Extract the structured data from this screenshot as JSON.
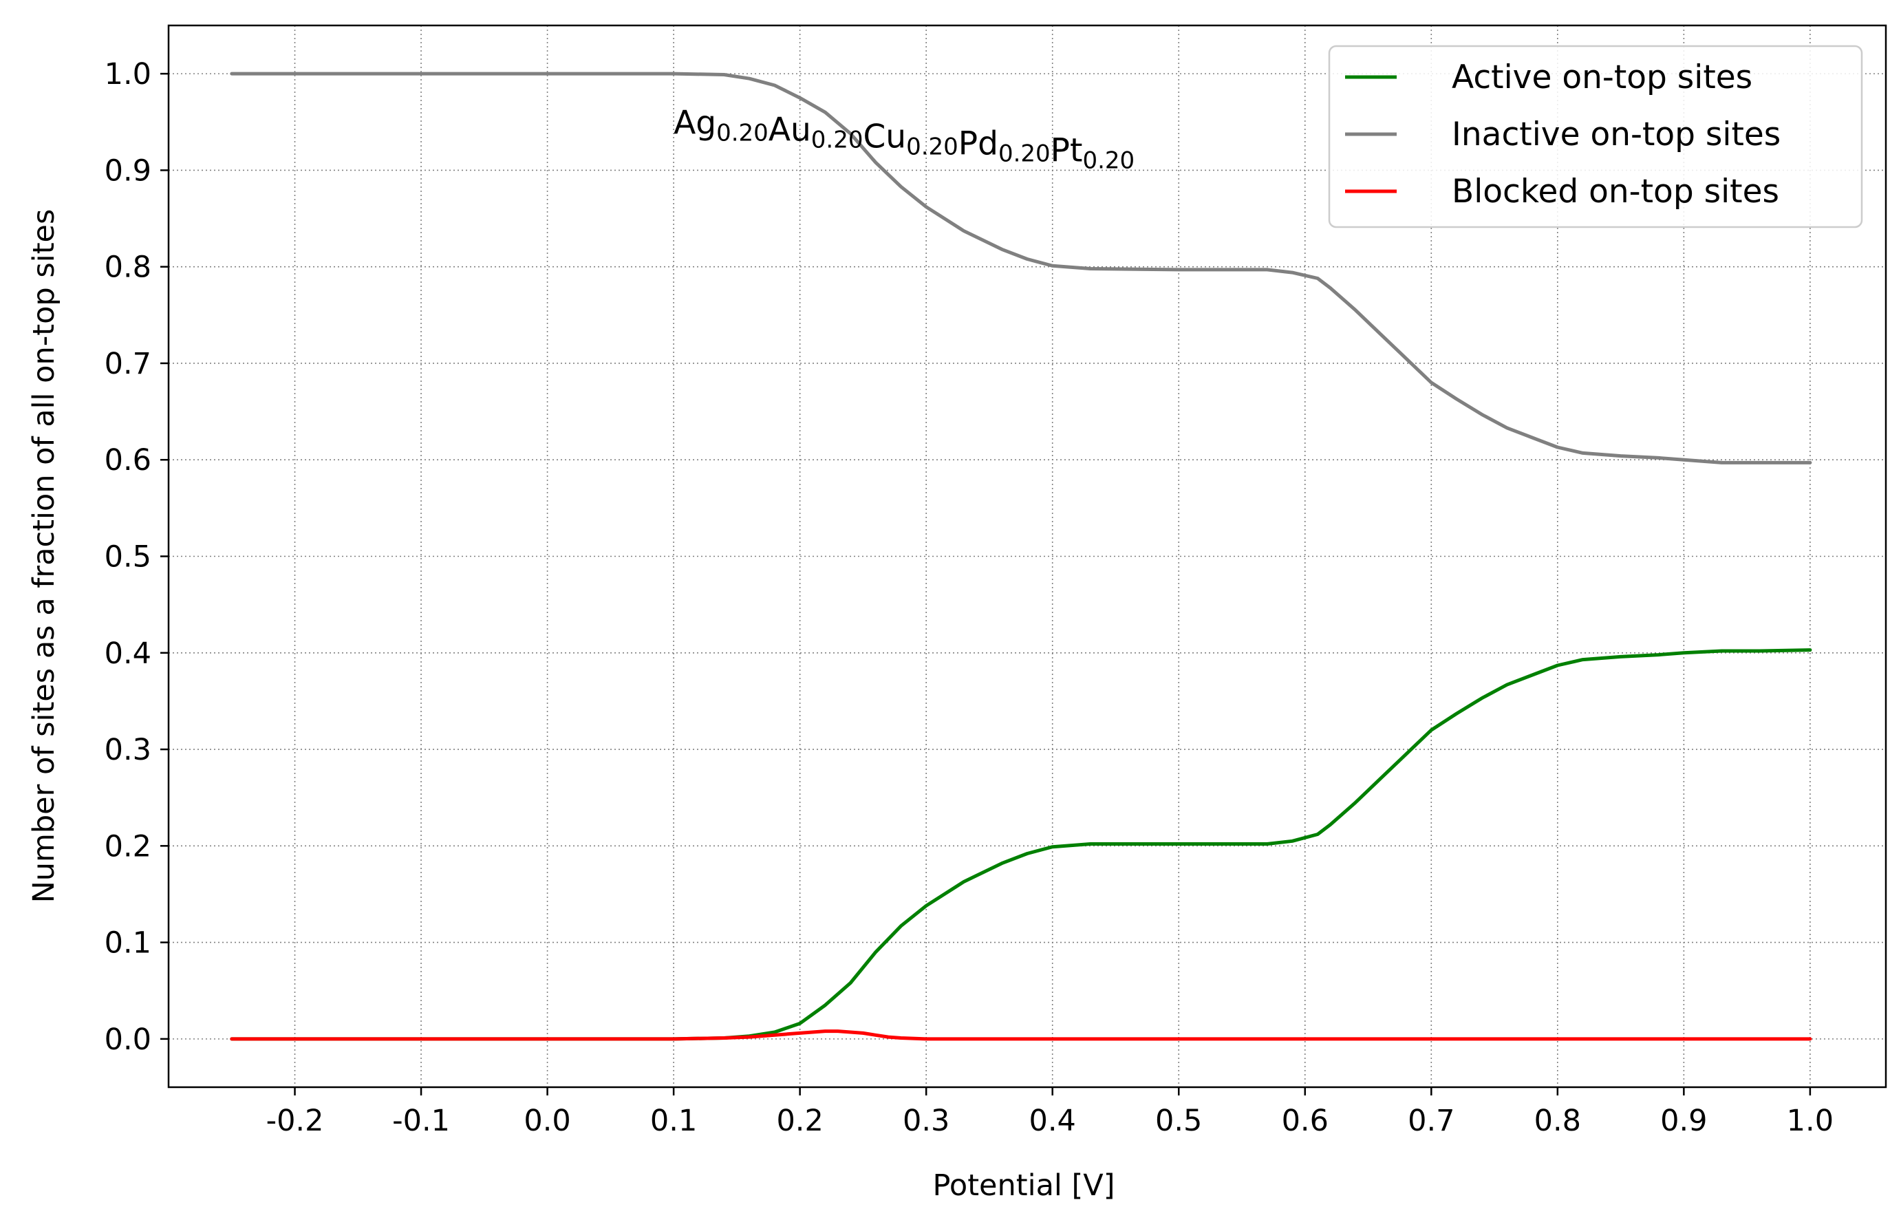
{
  "chart_data": {
    "type": "line",
    "title": "",
    "xlabel": "Potential [V]",
    "ylabel": "Number of sites as a fraction of all on-top sites",
    "xlim": [
      -0.3,
      1.06
    ],
    "ylim": [
      -0.05,
      1.05
    ],
    "xticks": [
      -0.2,
      -0.1,
      0.0,
      0.1,
      0.2,
      0.3,
      0.4,
      0.5,
      0.6,
      0.7,
      0.8,
      0.9,
      1.0
    ],
    "xtick_labels": [
      "-0.2",
      "-0.1",
      "0.0",
      "0.1",
      "0.2",
      "0.3",
      "0.4",
      "0.5",
      "0.6",
      "0.7",
      "0.8",
      "0.9",
      "1.0"
    ],
    "yticks": [
      0.0,
      0.1,
      0.2,
      0.3,
      0.4,
      0.5,
      0.6,
      0.7,
      0.8,
      0.9,
      1.0
    ],
    "ytick_labels": [
      "0.0",
      "0.1",
      "0.2",
      "0.3",
      "0.4",
      "0.5",
      "0.6",
      "0.7",
      "0.8",
      "0.9",
      "1.0"
    ],
    "grid": true,
    "legend_position": "top-right",
    "annotation": {
      "parts": [
        {
          "base": "Ag",
          "sub": "0.20"
        },
        {
          "base": "Au",
          "sub": "0.20"
        },
        {
          "base": "Cu",
          "sub": "0.20"
        },
        {
          "base": "Pd",
          "sub": "0.20"
        },
        {
          "base": "Pt",
          "sub": "0.20"
        }
      ],
      "x": 0.1,
      "y": 0.95
    },
    "series": [
      {
        "name": "Active on-top sites",
        "color": "#008000",
        "x": [
          -0.25,
          0.0,
          0.1,
          0.14,
          0.16,
          0.18,
          0.2,
          0.22,
          0.24,
          0.26,
          0.28,
          0.3,
          0.33,
          0.36,
          0.38,
          0.4,
          0.43,
          0.5,
          0.57,
          0.59,
          0.61,
          0.62,
          0.64,
          0.66,
          0.68,
          0.7,
          0.72,
          0.74,
          0.76,
          0.78,
          0.8,
          0.82,
          0.85,
          0.88,
          0.9,
          0.93,
          0.96,
          1.0
        ],
        "y": [
          0.0,
          0.0,
          0.0,
          0.001,
          0.003,
          0.007,
          0.016,
          0.035,
          0.058,
          0.09,
          0.117,
          0.138,
          0.163,
          0.182,
          0.192,
          0.199,
          0.202,
          0.202,
          0.202,
          0.205,
          0.212,
          0.222,
          0.245,
          0.27,
          0.295,
          0.32,
          0.337,
          0.353,
          0.367,
          0.377,
          0.387,
          0.393,
          0.396,
          0.398,
          0.4,
          0.402,
          0.402,
          0.403
        ]
      },
      {
        "name": "Inactive on-top sites",
        "color": "#808080",
        "x": [
          -0.25,
          0.0,
          0.1,
          0.14,
          0.16,
          0.18,
          0.2,
          0.22,
          0.24,
          0.26,
          0.28,
          0.3,
          0.33,
          0.36,
          0.38,
          0.4,
          0.43,
          0.5,
          0.57,
          0.59,
          0.61,
          0.62,
          0.64,
          0.66,
          0.68,
          0.7,
          0.72,
          0.74,
          0.76,
          0.78,
          0.8,
          0.82,
          0.85,
          0.88,
          0.9,
          0.93,
          0.96,
          1.0
        ],
        "y": [
          1.0,
          1.0,
          1.0,
          0.999,
          0.995,
          0.988,
          0.975,
          0.96,
          0.938,
          0.908,
          0.883,
          0.862,
          0.837,
          0.818,
          0.808,
          0.801,
          0.798,
          0.797,
          0.797,
          0.794,
          0.788,
          0.778,
          0.755,
          0.73,
          0.705,
          0.68,
          0.663,
          0.647,
          0.633,
          0.623,
          0.613,
          0.607,
          0.604,
          0.602,
          0.6,
          0.597,
          0.597,
          0.597
        ]
      },
      {
        "name": "Blocked on-top sites",
        "color": "#ff0000",
        "x": [
          -0.25,
          0.0,
          0.1,
          0.14,
          0.16,
          0.18,
          0.19,
          0.2,
          0.21,
          0.22,
          0.23,
          0.24,
          0.25,
          0.26,
          0.27,
          0.28,
          0.3,
          0.4,
          0.6,
          0.8,
          1.0
        ],
        "y": [
          0.0,
          0.0,
          0.0,
          0.001,
          0.002,
          0.004,
          0.005,
          0.006,
          0.007,
          0.008,
          0.008,
          0.007,
          0.006,
          0.004,
          0.002,
          0.001,
          0.0,
          0.0,
          0.0,
          0.0,
          0.0
        ]
      }
    ]
  }
}
